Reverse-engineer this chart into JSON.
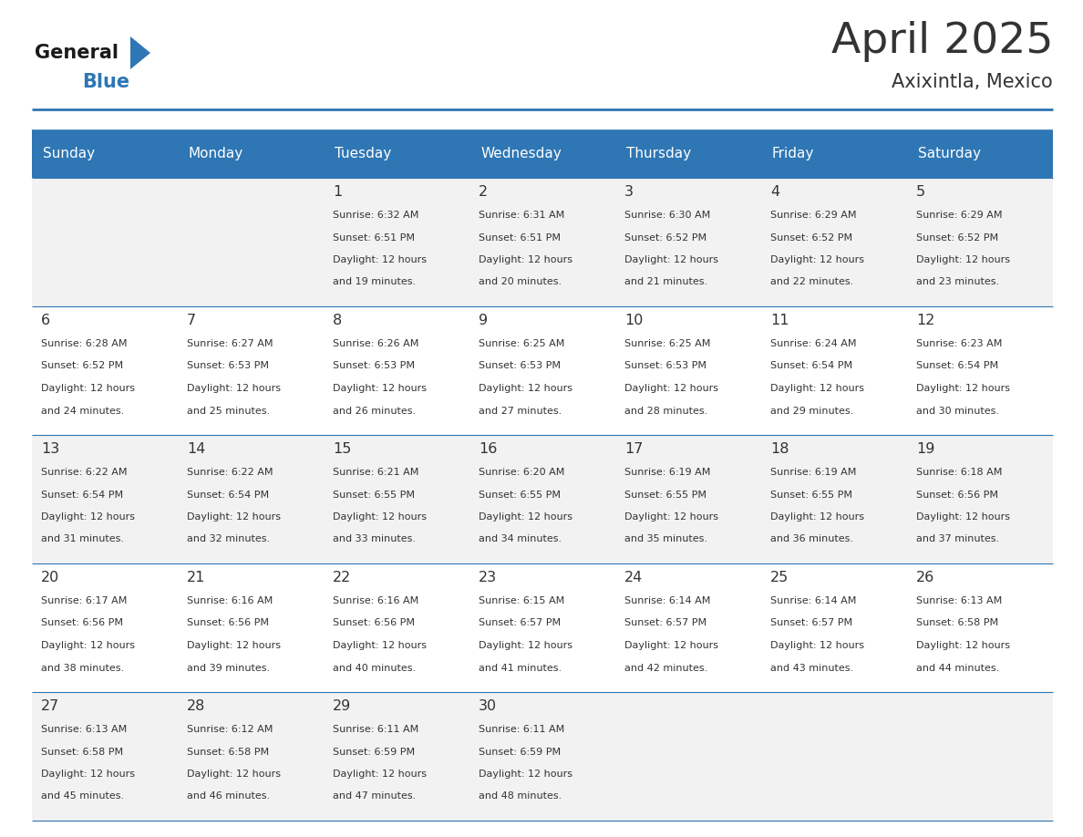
{
  "title": "April 2025",
  "subtitle": "Axixintla, Mexico",
  "days_of_week": [
    "Sunday",
    "Monday",
    "Tuesday",
    "Wednesday",
    "Thursday",
    "Friday",
    "Saturday"
  ],
  "header_bg": "#2E76B4",
  "header_text": "#FFFFFF",
  "cell_bg_odd": "#F2F2F2",
  "cell_bg_even": "#FFFFFF",
  "border_color": "#2E76B4",
  "text_color": "#333333",
  "logo_general_color": "#1a1a1a",
  "logo_blue_color": "#2E76B4",
  "weeks": [
    [
      {
        "day": null,
        "info": null
      },
      {
        "day": null,
        "info": null
      },
      {
        "day": 1,
        "info": {
          "sunrise": "6:32 AM",
          "sunset": "6:51 PM",
          "daylight": "12 hours and 19 minutes"
        }
      },
      {
        "day": 2,
        "info": {
          "sunrise": "6:31 AM",
          "sunset": "6:51 PM",
          "daylight": "12 hours and 20 minutes"
        }
      },
      {
        "day": 3,
        "info": {
          "sunrise": "6:30 AM",
          "sunset": "6:52 PM",
          "daylight": "12 hours and 21 minutes"
        }
      },
      {
        "day": 4,
        "info": {
          "sunrise": "6:29 AM",
          "sunset": "6:52 PM",
          "daylight": "12 hours and 22 minutes"
        }
      },
      {
        "day": 5,
        "info": {
          "sunrise": "6:29 AM",
          "sunset": "6:52 PM",
          "daylight": "12 hours and 23 minutes"
        }
      }
    ],
    [
      {
        "day": 6,
        "info": {
          "sunrise": "6:28 AM",
          "sunset": "6:52 PM",
          "daylight": "12 hours and 24 minutes"
        }
      },
      {
        "day": 7,
        "info": {
          "sunrise": "6:27 AM",
          "sunset": "6:53 PM",
          "daylight": "12 hours and 25 minutes"
        }
      },
      {
        "day": 8,
        "info": {
          "sunrise": "6:26 AM",
          "sunset": "6:53 PM",
          "daylight": "12 hours and 26 minutes"
        }
      },
      {
        "day": 9,
        "info": {
          "sunrise": "6:25 AM",
          "sunset": "6:53 PM",
          "daylight": "12 hours and 27 minutes"
        }
      },
      {
        "day": 10,
        "info": {
          "sunrise": "6:25 AM",
          "sunset": "6:53 PM",
          "daylight": "12 hours and 28 minutes"
        }
      },
      {
        "day": 11,
        "info": {
          "sunrise": "6:24 AM",
          "sunset": "6:54 PM",
          "daylight": "12 hours and 29 minutes"
        }
      },
      {
        "day": 12,
        "info": {
          "sunrise": "6:23 AM",
          "sunset": "6:54 PM",
          "daylight": "12 hours and 30 minutes"
        }
      }
    ],
    [
      {
        "day": 13,
        "info": {
          "sunrise": "6:22 AM",
          "sunset": "6:54 PM",
          "daylight": "12 hours and 31 minutes"
        }
      },
      {
        "day": 14,
        "info": {
          "sunrise": "6:22 AM",
          "sunset": "6:54 PM",
          "daylight": "12 hours and 32 minutes"
        }
      },
      {
        "day": 15,
        "info": {
          "sunrise": "6:21 AM",
          "sunset": "6:55 PM",
          "daylight": "12 hours and 33 minutes"
        }
      },
      {
        "day": 16,
        "info": {
          "sunrise": "6:20 AM",
          "sunset": "6:55 PM",
          "daylight": "12 hours and 34 minutes"
        }
      },
      {
        "day": 17,
        "info": {
          "sunrise": "6:19 AM",
          "sunset": "6:55 PM",
          "daylight": "12 hours and 35 minutes"
        }
      },
      {
        "day": 18,
        "info": {
          "sunrise": "6:19 AM",
          "sunset": "6:55 PM",
          "daylight": "12 hours and 36 minutes"
        }
      },
      {
        "day": 19,
        "info": {
          "sunrise": "6:18 AM",
          "sunset": "6:56 PM",
          "daylight": "12 hours and 37 minutes"
        }
      }
    ],
    [
      {
        "day": 20,
        "info": {
          "sunrise": "6:17 AM",
          "sunset": "6:56 PM",
          "daylight": "12 hours and 38 minutes"
        }
      },
      {
        "day": 21,
        "info": {
          "sunrise": "6:16 AM",
          "sunset": "6:56 PM",
          "daylight": "12 hours and 39 minutes"
        }
      },
      {
        "day": 22,
        "info": {
          "sunrise": "6:16 AM",
          "sunset": "6:56 PM",
          "daylight": "12 hours and 40 minutes"
        }
      },
      {
        "day": 23,
        "info": {
          "sunrise": "6:15 AM",
          "sunset": "6:57 PM",
          "daylight": "12 hours and 41 minutes"
        }
      },
      {
        "day": 24,
        "info": {
          "sunrise": "6:14 AM",
          "sunset": "6:57 PM",
          "daylight": "12 hours and 42 minutes"
        }
      },
      {
        "day": 25,
        "info": {
          "sunrise": "6:14 AM",
          "sunset": "6:57 PM",
          "daylight": "12 hours and 43 minutes"
        }
      },
      {
        "day": 26,
        "info": {
          "sunrise": "6:13 AM",
          "sunset": "6:58 PM",
          "daylight": "12 hours and 44 minutes"
        }
      }
    ],
    [
      {
        "day": 27,
        "info": {
          "sunrise": "6:13 AM",
          "sunset": "6:58 PM",
          "daylight": "12 hours and 45 minutes"
        }
      },
      {
        "day": 28,
        "info": {
          "sunrise": "6:12 AM",
          "sunset": "6:58 PM",
          "daylight": "12 hours and 46 minutes"
        }
      },
      {
        "day": 29,
        "info": {
          "sunrise": "6:11 AM",
          "sunset": "6:59 PM",
          "daylight": "12 hours and 47 minutes"
        }
      },
      {
        "day": 30,
        "info": {
          "sunrise": "6:11 AM",
          "sunset": "6:59 PM",
          "daylight": "12 hours and 48 minutes"
        }
      },
      {
        "day": null,
        "info": null
      },
      {
        "day": null,
        "info": null
      },
      {
        "day": null,
        "info": null
      }
    ]
  ]
}
